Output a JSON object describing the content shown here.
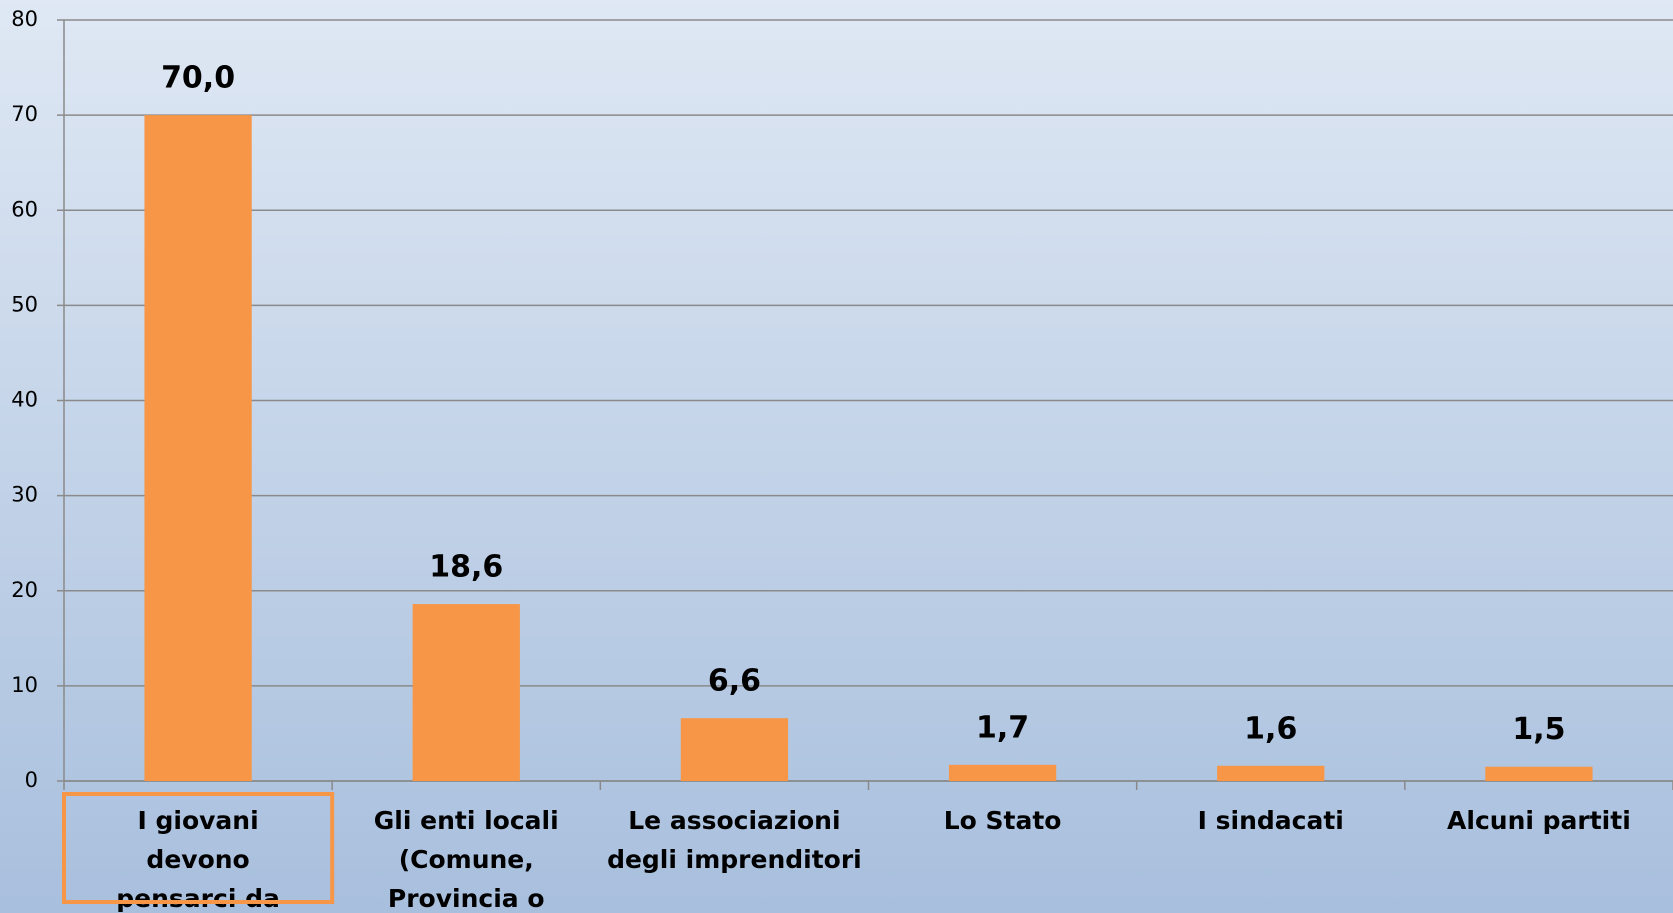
{
  "chart_data": {
    "type": "bar",
    "categories": [
      "I giovani devono pensarci da soli",
      "Gli enti locali (Comune, Provincia o Regione)",
      "Le associazioni degli imprenditori",
      "Lo Stato",
      "I sindacati",
      "Alcuni partiti"
    ],
    "values": [
      70.0,
      18.6,
      6.6,
      1.7,
      1.6,
      1.5
    ],
    "value_labels": [
      "70,0",
      "18,6",
      "6,6",
      "1,7",
      "1,6",
      "1,5"
    ],
    "color": "#f79646",
    "ylim": [
      0,
      80
    ],
    "yticks": [
      0,
      10,
      20,
      30,
      40,
      50,
      60,
      70,
      80
    ],
    "grid": true
  }
}
